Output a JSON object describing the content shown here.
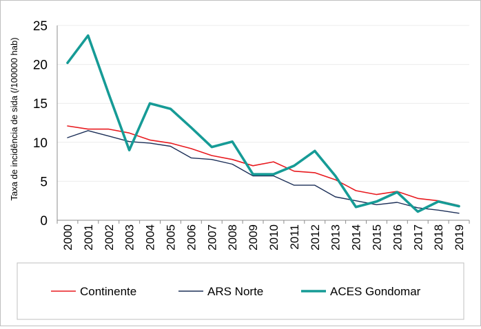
{
  "chart_data": {
    "type": "line",
    "ylabel": "Taxa de incidência de sida (/100000 hab)",
    "xlabel": "",
    "ylim": [
      0,
      25
    ],
    "yticks": [
      "0",
      "5",
      "10",
      "15",
      "20",
      "25"
    ],
    "categories": [
      "2000",
      "2001",
      "2002",
      "2003",
      "2004",
      "2005",
      "2006",
      "2007",
      "2008",
      "2009",
      "2010",
      "2011",
      "2012",
      "2013",
      "2014",
      "2015",
      "2016",
      "2017",
      "2018",
      "2019"
    ],
    "series": [
      {
        "name": "Continente",
        "color": "#e8191e",
        "values": [
          12.1,
          11.7,
          11.7,
          11.2,
          10.3,
          9.9,
          9.2,
          8.3,
          7.8,
          7.0,
          7.5,
          6.3,
          6.1,
          5.2,
          3.8,
          3.3,
          3.7,
          2.8,
          2.5,
          1.9
        ]
      },
      {
        "name": "ARS Norte",
        "color": "#1b2e57",
        "values": [
          10.6,
          11.5,
          10.8,
          10.1,
          9.9,
          9.5,
          8.0,
          7.8,
          7.2,
          5.7,
          5.7,
          4.5,
          4.5,
          3.0,
          2.5,
          2.0,
          2.3,
          1.6,
          1.3,
          0.9
        ]
      },
      {
        "name": "ACES Gondomar",
        "color": "#169b96",
        "values": [
          20.2,
          23.7,
          16.2,
          9.0,
          15.0,
          14.3,
          11.9,
          9.4,
          10.1,
          5.9,
          5.9,
          7.0,
          8.9,
          5.7,
          1.7,
          2.4,
          3.6,
          1.1,
          2.4,
          1.8
        ]
      }
    ],
    "grid": true,
    "legend_position": "bottom"
  }
}
